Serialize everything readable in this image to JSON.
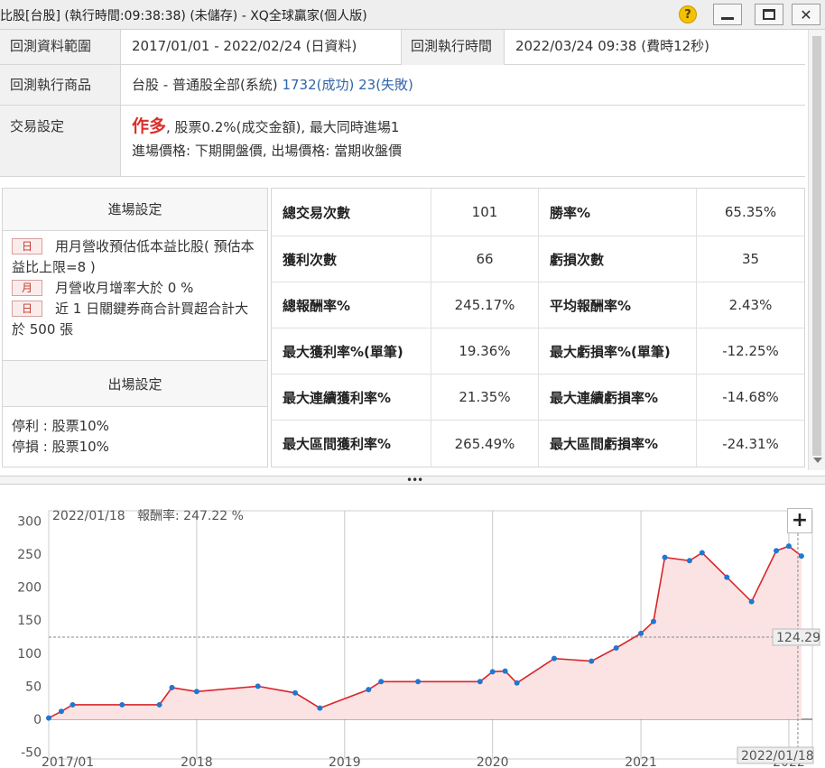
{
  "window": {
    "title": "比股[台股] (執行時間:09:38:38) (未儲存) - XQ全球贏家(個人版)",
    "help_symbol": "?",
    "close_symbol": "✕"
  },
  "info": {
    "range_label": "回測資料範圍",
    "range_value": "2017/01/01 - 2022/02/24 (日資料)",
    "exec_time_label": "回測執行時間",
    "exec_time_value": "2022/03/24 09:38 (費時12秒)",
    "product_label": "回測執行商品",
    "product_value": "台股 - 普通股全部(系統)",
    "product_success": "1732(成功)",
    "product_fail": "23(失敗)",
    "trade_label": "交易設定",
    "trade_direction": "作多",
    "trade_detail": ", 股票0.2%(成交金額), 最大同時進場1",
    "trade_price": "進場價格: 下期開盤價, 出場價格: 當期收盤價"
  },
  "entry": {
    "header": "進場設定",
    "cond1_tag": "日",
    "cond1_text": "用月營收預估低本益比股( 預估本益比上限=8 )",
    "cond2_tag": "月",
    "cond2_text": "月營收月增率大於 0 %",
    "cond3_tag": "日",
    "cond3_text": "近 1 日關鍵券商合計買超合計大於 500 張"
  },
  "exit": {
    "header": "出場設定",
    "take_profit": "停利 : 股票10%",
    "stop_loss": "停損 : 股票10%"
  },
  "stats": [
    {
      "l1": "總交易次數",
      "v1": "101",
      "l2": "勝率%",
      "v2": "65.35%",
      "red1": false,
      "red2": true
    },
    {
      "l1": "獲利次數",
      "v1": "66",
      "l2": "虧損次數",
      "v2": "35",
      "red1": false,
      "red2": false
    },
    {
      "l1": "總報酬率%",
      "v1": "245.17%",
      "l2": "平均報酬率%",
      "v2": "2.43%",
      "red1": true,
      "red2": false
    },
    {
      "l1": "最大獲利率%(單筆)",
      "v1": "19.36%",
      "l2": "最大虧損率%(單筆)",
      "v2": "-12.25%",
      "red1": false,
      "red2": false
    },
    {
      "l1": "最大連續獲利率%",
      "v1": "21.35%",
      "l2": "最大連續虧損率%",
      "v2": "-14.68%",
      "red1": false,
      "red2": false
    },
    {
      "l1": "最大區間獲利率%",
      "v1": "265.49%",
      "l2": "最大區間虧損率%",
      "v2": "-24.31%",
      "red1": false,
      "red2": false
    }
  ],
  "splitter": "•••",
  "chart": {
    "cursor_date": "2022/01/18",
    "return_label": "報酬率: 247.22 %",
    "crosshair_value": "124.29",
    "crosshair_date": "2022/01/18",
    "zoom_symbol": "+",
    "line_color": "#d8262c",
    "marker_color": "#1f78d1",
    "fill_color": "#fbe3e3"
  },
  "chart_data": {
    "type": "area",
    "title": "",
    "xlabel": "",
    "ylabel": "",
    "ylim": [
      -60,
      310
    ],
    "yticks": [
      300,
      250,
      200,
      150,
      100,
      50,
      0,
      -50
    ],
    "xticks": [
      "2017/01",
      "2018",
      "2019",
      "2020",
      "2021",
      "2022"
    ],
    "x": [
      "2017-01",
      "2017-02",
      "2017-03",
      "2017-07",
      "2017-10",
      "2017-11",
      "2018-01",
      "2018-06",
      "2018-09",
      "2018-11",
      "2019-03",
      "2019-04",
      "2019-07",
      "2019-12",
      "2020-01",
      "2020-02",
      "2020-03",
      "2020-06",
      "2020-09",
      "2020-11",
      "2021-01",
      "2021-02",
      "2021-03",
      "2021-05",
      "2021-06",
      "2021-08",
      "2021-10",
      "2021-12",
      "2022-01",
      "2022-02"
    ],
    "series": [
      {
        "values": [
          2,
          12,
          22,
          22,
          22,
          48,
          42,
          50,
          40,
          17,
          45,
          57,
          57,
          57,
          72,
          73,
          55,
          92,
          88,
          108,
          130,
          148,
          245,
          240,
          252,
          215,
          178,
          255,
          262,
          247
        ]
      }
    ]
  }
}
